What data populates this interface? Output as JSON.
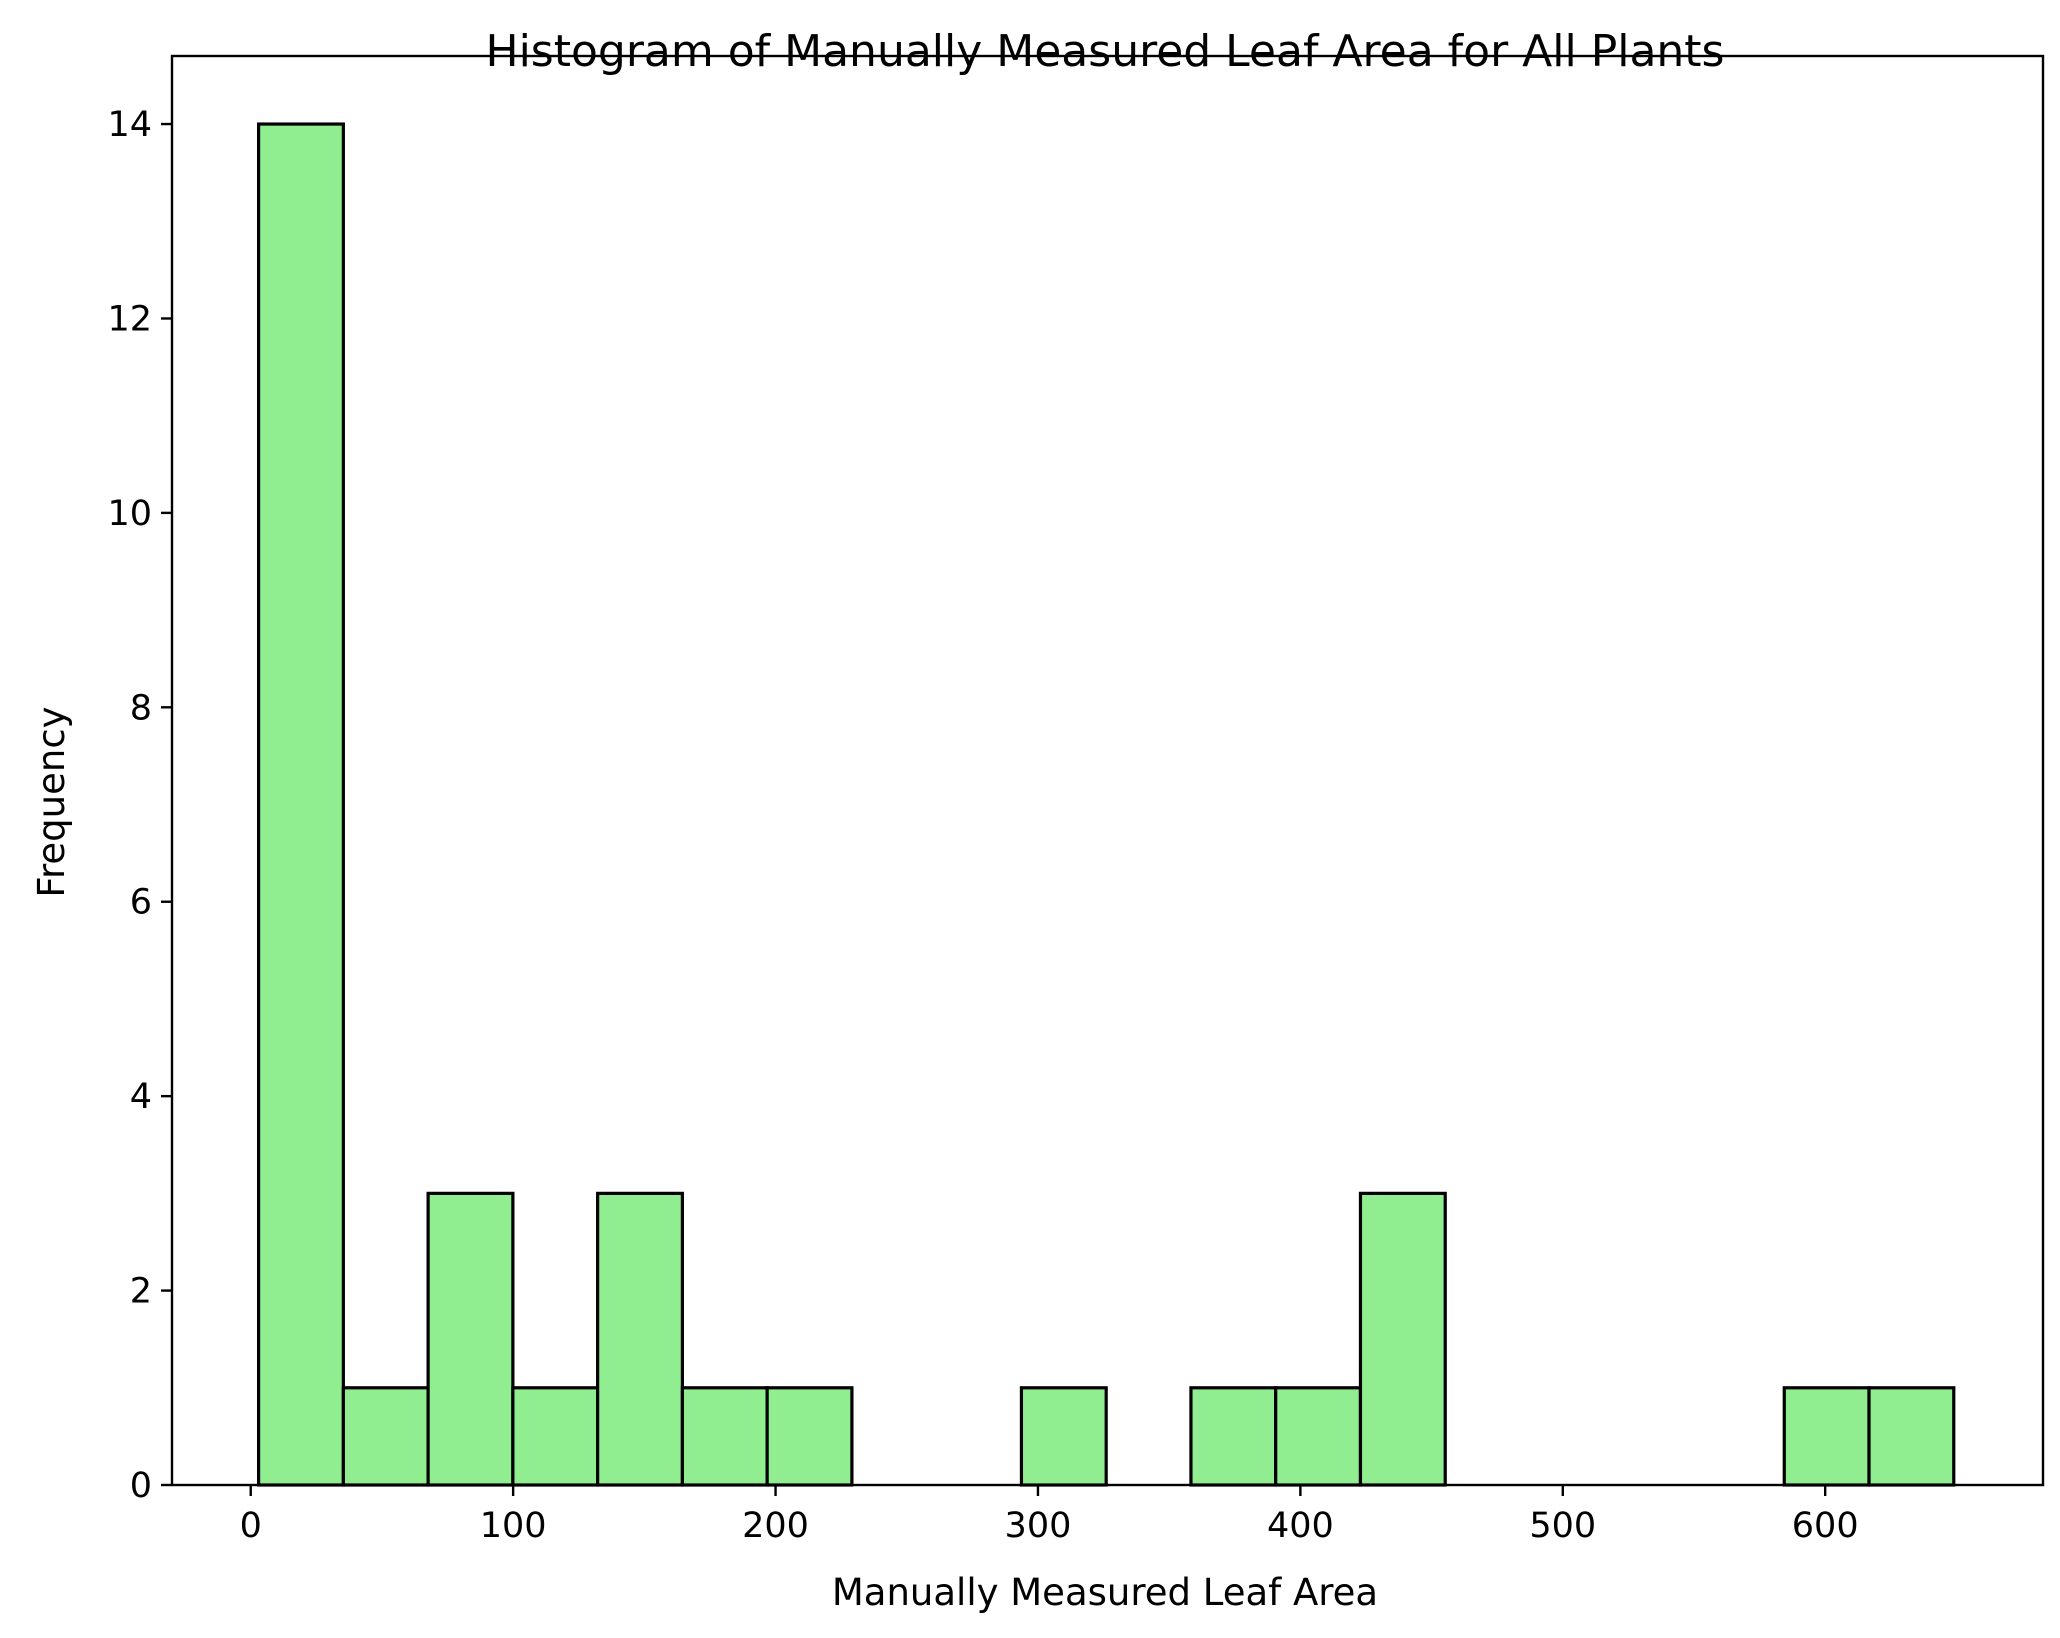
{
  "chart_data": {
    "type": "bar",
    "subtype": "histogram",
    "title": "Histogram of Manually Measured Leaf Area for All Plants",
    "xlabel": "Manually Measured Leaf Area",
    "ylabel": "Frequency",
    "bar_color": "#90EE90",
    "edge_color": "#000000",
    "xlim": [
      -30,
      683
    ],
    "ylim": [
      0,
      14.7
    ],
    "xticks": [
      0,
      100,
      200,
      300,
      400,
      500,
      600
    ],
    "yticks": [
      0,
      2,
      4,
      6,
      8,
      10,
      12,
      14
    ],
    "bin_edges": [
      3.0,
      35.3,
      67.6,
      99.9,
      132.2,
      164.5,
      196.8,
      229.1,
      261.4,
      293.7,
      326.0,
      358.3,
      390.6,
      422.9,
      455.2,
      487.5,
      519.8,
      552.1,
      584.4,
      616.7,
      649.0
    ],
    "values": [
      14,
      1,
      3,
      1,
      3,
      1,
      1,
      0,
      0,
      1,
      0,
      1,
      1,
      3,
      0,
      0,
      0,
      0,
      1,
      1
    ],
    "grid": false
  }
}
